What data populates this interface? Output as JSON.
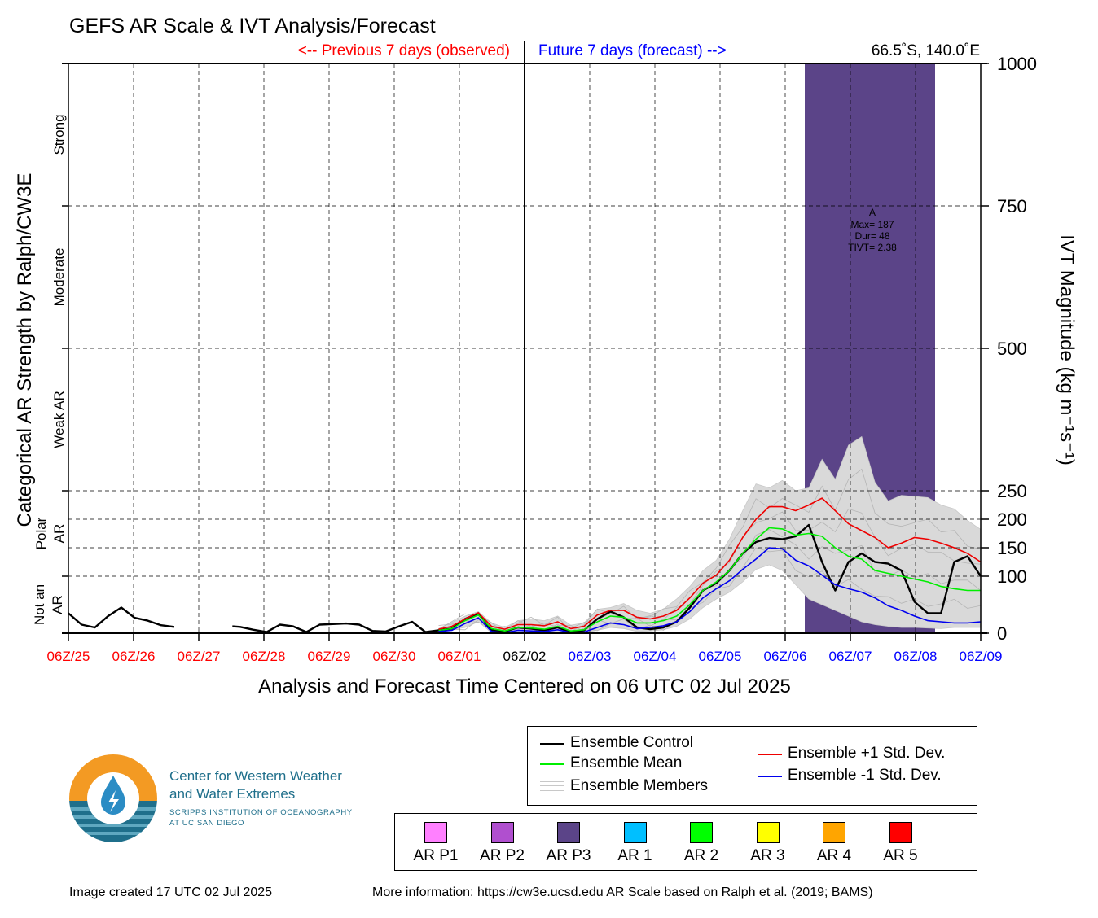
{
  "chart_data": {
    "type": "line",
    "title": "GEFS AR Scale & IVT Analysis/Forecast",
    "prev_label": "<-- Previous 7 days (observed)",
    "future_label": "Future 7 days (forecast) -->",
    "location": "66.5˚S, 140.0˚E",
    "xlabel": "Analysis and Forecast Time Centered on 06 UTC 02 Jul 2025",
    "ylabel_left": "Categorical AR Strength by Ralph/CW3E",
    "ylabel_right": "IVT Magnitude (kg m⁻¹s⁻¹)",
    "x_ticks": [
      "06Z/25",
      "06Z/26",
      "06Z/27",
      "06Z/28",
      "06Z/29",
      "06Z/30",
      "06Z/01",
      "06Z/02",
      "06Z/03",
      "06Z/04",
      "06Z/05",
      "06Z/06",
      "06Z/07",
      "06Z/08",
      "06Z/09"
    ],
    "x_tick_colors": [
      "#ff0000",
      "#ff0000",
      "#ff0000",
      "#ff0000",
      "#ff0000",
      "#ff0000",
      "#ff0000",
      "#000000",
      "#0000ff",
      "#0000ff",
      "#0000ff",
      "#0000ff",
      "#0000ff",
      "#0000ff",
      "#0000ff"
    ],
    "x_range_days": [
      0,
      14
    ],
    "y_ticks": [
      0,
      100,
      150,
      200,
      250,
      500,
      750,
      1000
    ],
    "ylim": [
      0,
      1000
    ],
    "categories": [
      {
        "label": "Strong",
        "from": 750,
        "to": 1000
      },
      {
        "label": "Moderate",
        "from": 500,
        "to": 750
      },
      {
        "label": "Weak AR",
        "from": 250,
        "to": 500
      },
      {
        "label": "Polar AR",
        "from": 100,
        "to": 250
      },
      {
        "label": "Not an AR",
        "from": 0,
        "to": 100
      }
    ],
    "ar_event": {
      "x_start": 11.3,
      "x_end": 13.3,
      "color": "#5b4488",
      "label": "A",
      "lines": [
        "Max= 187",
        "Dur= 48",
        "TIVT= 2.38"
      ]
    },
    "series": [
      {
        "name": "Ensemble Control",
        "color": "#000000",
        "points": [
          [
            0.0,
            35
          ],
          [
            0.25,
            15
          ],
          [
            0.5,
            10
          ],
          [
            0.75,
            30
          ],
          [
            1.0,
            45
          ],
          [
            1.25,
            27
          ],
          [
            1.5,
            22
          ],
          [
            1.75,
            14
          ],
          [
            2.0,
            11
          ],
          null,
          [
            3.1,
            12
          ],
          [
            3.25,
            11
          ],
          [
            3.5,
            6
          ],
          [
            3.75,
            2
          ],
          [
            4.0,
            15
          ],
          [
            4.25,
            12
          ],
          [
            4.5,
            2
          ],
          [
            4.75,
            15
          ],
          [
            5.0,
            16
          ],
          [
            5.25,
            17
          ],
          [
            5.5,
            15
          ],
          [
            5.75,
            4
          ],
          [
            6.0,
            3
          ],
          [
            6.25,
            12
          ],
          [
            6.5,
            20
          ],
          [
            6.75,
            2
          ],
          [
            7.0,
            5
          ],
          [
            7.25,
            8
          ],
          [
            7.5,
            25
          ],
          [
            7.75,
            35
          ],
          [
            8.0,
            5
          ],
          [
            8.25,
            3
          ],
          [
            8.5,
            10
          ],
          [
            8.75,
            8
          ],
          [
            9.0,
            5
          ],
          [
            9.25,
            10
          ],
          [
            9.5,
            2
          ],
          [
            9.75,
            5
          ],
          [
            10.0,
            25
          ],
          [
            10.25,
            38
          ],
          [
            10.5,
            28
          ],
          [
            10.75,
            10
          ],
          [
            11.0,
            7
          ],
          [
            11.25,
            10
          ],
          [
            11.5,
            20
          ],
          [
            11.75,
            45
          ],
          [
            12.0,
            75
          ],
          [
            12.25,
            88
          ],
          [
            12.5,
            110
          ],
          [
            12.75,
            140
          ],
          [
            13.0,
            160
          ],
          [
            13.25,
            167
          ],
          [
            13.5,
            165
          ],
          [
            13.75,
            170
          ],
          [
            14.0,
            190
          ],
          [
            14.25,
            125
          ],
          [
            14.5,
            75
          ],
          [
            14.75,
            125
          ],
          [
            15.0,
            140
          ],
          [
            15.25,
            125
          ],
          [
            15.5,
            122
          ],
          [
            15.75,
            110
          ],
          [
            16.0,
            55
          ],
          [
            16.25,
            35
          ],
          [
            16.5,
            35
          ],
          [
            16.75,
            125
          ],
          [
            17.0,
            135
          ],
          [
            17.25,
            100
          ]
        ]
      },
      {
        "name": "Ensemble Mean",
        "color": "#00ee00",
        "points": [
          [
            7.0,
            5
          ],
          [
            7.25,
            8
          ],
          [
            7.5,
            22
          ],
          [
            7.75,
            32
          ],
          [
            8.0,
            8
          ],
          [
            8.25,
            4
          ],
          [
            8.5,
            10
          ],
          [
            8.75,
            9
          ],
          [
            9.0,
            7
          ],
          [
            9.25,
            12
          ],
          [
            9.5,
            4
          ],
          [
            9.75,
            6
          ],
          [
            10.0,
            20
          ],
          [
            10.25,
            30
          ],
          [
            10.5,
            28
          ],
          [
            10.75,
            18
          ],
          [
            11.0,
            18
          ],
          [
            11.25,
            22
          ],
          [
            11.5,
            30
          ],
          [
            11.75,
            50
          ],
          [
            12.0,
            75
          ],
          [
            12.25,
            90
          ],
          [
            12.5,
            110
          ],
          [
            12.75,
            140
          ],
          [
            13.0,
            165
          ],
          [
            13.25,
            185
          ],
          [
            13.5,
            183
          ],
          [
            13.75,
            172
          ],
          [
            14.0,
            175
          ],
          [
            14.25,
            170
          ],
          [
            14.5,
            150
          ],
          [
            14.75,
            135
          ],
          [
            15.0,
            130
          ],
          [
            15.25,
            110
          ],
          [
            15.5,
            105
          ],
          [
            15.75,
            100
          ],
          [
            16.0,
            95
          ],
          [
            16.25,
            90
          ],
          [
            16.5,
            82
          ],
          [
            16.75,
            78
          ],
          [
            17.0,
            75
          ],
          [
            17.25,
            75
          ]
        ]
      },
      {
        "name": "Ensemble +1 Std. Dev.",
        "color": "#ee0000",
        "points": [
          [
            7.0,
            7
          ],
          [
            7.25,
            12
          ],
          [
            7.5,
            25
          ],
          [
            7.75,
            36
          ],
          [
            8.0,
            12
          ],
          [
            8.25,
            7
          ],
          [
            8.5,
            15
          ],
          [
            8.75,
            15
          ],
          [
            9.0,
            13
          ],
          [
            9.25,
            20
          ],
          [
            9.5,
            8
          ],
          [
            9.75,
            12
          ],
          [
            10.0,
            32
          ],
          [
            10.25,
            40
          ],
          [
            10.5,
            40
          ],
          [
            10.75,
            28
          ],
          [
            11.0,
            25
          ],
          [
            11.25,
            30
          ],
          [
            11.5,
            40
          ],
          [
            11.75,
            62
          ],
          [
            12.0,
            88
          ],
          [
            12.25,
            102
          ],
          [
            12.5,
            128
          ],
          [
            12.75,
            168
          ],
          [
            13.0,
            200
          ],
          [
            13.25,
            222
          ],
          [
            13.5,
            222
          ],
          [
            13.75,
            215
          ],
          [
            14.0,
            225
          ],
          [
            14.25,
            237
          ],
          [
            14.5,
            215
          ],
          [
            14.75,
            192
          ],
          [
            15.0,
            180
          ],
          [
            15.25,
            168
          ],
          [
            15.5,
            150
          ],
          [
            15.75,
            158
          ],
          [
            16.0,
            168
          ],
          [
            16.25,
            165
          ],
          [
            16.5,
            158
          ],
          [
            16.75,
            150
          ],
          [
            17.0,
            140
          ],
          [
            17.25,
            125
          ]
        ]
      },
      {
        "name": "Ensemble -1 Std. Dev.",
        "color": "#0000ee",
        "points": [
          [
            7.0,
            3
          ],
          [
            7.25,
            5
          ],
          [
            7.5,
            17
          ],
          [
            7.75,
            27
          ],
          [
            8.0,
            3
          ],
          [
            8.25,
            1
          ],
          [
            8.5,
            5
          ],
          [
            8.75,
            4
          ],
          [
            9.0,
            3
          ],
          [
            9.25,
            6
          ],
          [
            9.5,
            1
          ],
          [
            9.75,
            2
          ],
          [
            10.0,
            10
          ],
          [
            10.25,
            18
          ],
          [
            10.5,
            15
          ],
          [
            10.75,
            8
          ],
          [
            11.0,
            10
          ],
          [
            11.25,
            13
          ],
          [
            11.5,
            20
          ],
          [
            11.75,
            38
          ],
          [
            12.0,
            62
          ],
          [
            12.25,
            78
          ],
          [
            12.5,
            92
          ],
          [
            12.75,
            112
          ],
          [
            13.0,
            130
          ],
          [
            13.25,
            150
          ],
          [
            13.5,
            148
          ],
          [
            13.75,
            128
          ],
          [
            14.0,
            118
          ],
          [
            14.25,
            102
          ],
          [
            14.5,
            85
          ],
          [
            14.75,
            78
          ],
          [
            15.0,
            72
          ],
          [
            15.25,
            62
          ],
          [
            15.5,
            48
          ],
          [
            15.75,
            40
          ],
          [
            16.0,
            30
          ],
          [
            16.25,
            22
          ],
          [
            16.5,
            20
          ],
          [
            16.75,
            18
          ],
          [
            17.0,
            18
          ],
          [
            17.25,
            20
          ]
        ]
      }
    ],
    "ensemble_envelope": {
      "name": "Ensemble Members",
      "color": "#c8c8c8",
      "upper": [
        [
          7.0,
          8
        ],
        [
          7.5,
          30
        ],
        [
          7.75,
          38
        ],
        [
          8.0,
          18
        ],
        [
          8.25,
          10
        ],
        [
          8.5,
          22
        ],
        [
          8.75,
          25
        ],
        [
          9.0,
          22
        ],
        [
          9.25,
          30
        ],
        [
          9.5,
          14
        ],
        [
          9.75,
          18
        ],
        [
          10.0,
          42
        ],
        [
          10.25,
          45
        ],
        [
          10.5,
          52
        ],
        [
          10.75,
          40
        ],
        [
          11.0,
          35
        ],
        [
          11.25,
          42
        ],
        [
          11.5,
          60
        ],
        [
          11.75,
          82
        ],
        [
          12.0,
          110
        ],
        [
          12.25,
          128
        ],
        [
          12.5,
          165
        ],
        [
          12.75,
          215
        ],
        [
          13.0,
          262
        ],
        [
          13.25,
          255
        ],
        [
          13.5,
          268
        ],
        [
          13.75,
          250
        ],
        [
          14.0,
          255
        ],
        [
          14.25,
          305
        ],
        [
          14.5,
          270
        ],
        [
          14.75,
          330
        ],
        [
          15.0,
          345
        ],
        [
          15.25,
          265
        ],
        [
          15.5,
          232
        ],
        [
          15.75,
          242
        ],
        [
          16.0,
          240
        ],
        [
          16.25,
          238
        ],
        [
          16.5,
          225
        ],
        [
          16.75,
          218
        ],
        [
          17.0,
          198
        ],
        [
          17.25,
          182
        ]
      ],
      "lower": [
        [
          7.0,
          2
        ],
        [
          7.5,
          10
        ],
        [
          7.75,
          20
        ],
        [
          8.0,
          1
        ],
        [
          8.25,
          0
        ],
        [
          8.5,
          2
        ],
        [
          8.75,
          1
        ],
        [
          9.0,
          1
        ],
        [
          9.25,
          2
        ],
        [
          9.5,
          0
        ],
        [
          9.75,
          1
        ],
        [
          10.0,
          5
        ],
        [
          10.25,
          10
        ],
        [
          10.5,
          8
        ],
        [
          10.75,
          3
        ],
        [
          11.0,
          4
        ],
        [
          11.25,
          6
        ],
        [
          11.5,
          12
        ],
        [
          11.75,
          25
        ],
        [
          12.0,
          45
        ],
        [
          12.25,
          60
        ],
        [
          12.5,
          72
        ],
        [
          12.75,
          90
        ],
        [
          13.0,
          112
        ],
        [
          13.25,
          120
        ],
        [
          13.5,
          110
        ],
        [
          13.75,
          85
        ],
        [
          14.0,
          60
        ],
        [
          14.25,
          50
        ],
        [
          14.5,
          40
        ],
        [
          14.75,
          30
        ],
        [
          15.0,
          20
        ],
        [
          15.25,
          15
        ],
        [
          15.5,
          12
        ],
        [
          15.75,
          10
        ],
        [
          16.0,
          10
        ],
        [
          16.25,
          9
        ],
        [
          16.5,
          8
        ],
        [
          16.75,
          10
        ],
        [
          17.0,
          10
        ],
        [
          17.25,
          10
        ]
      ]
    }
  },
  "logo": {
    "line1": "Center for Western Weather",
    "line2": "and Water Extremes",
    "sub1": "SCRIPPS INSTITUTION OF OCEANOGRAPHY",
    "sub2": "AT UC SAN DIEGO"
  },
  "legend": {
    "control": "Ensemble Control",
    "mean": "Ensemble Mean",
    "members": "Ensemble Members",
    "plus": "Ensemble +1 Std. Dev.",
    "minus": "Ensemble -1 Std. Dev.",
    "colors": {
      "control": "#000000",
      "mean": "#00ee00",
      "members": "#c8c8c8",
      "plus": "#ee0000",
      "minus": "#0000ee"
    }
  },
  "ar_scale": [
    {
      "label": "AR P1",
      "color": "#ff80ff"
    },
    {
      "label": "AR P2",
      "color": "#b04fcf"
    },
    {
      "label": "AR P3",
      "color": "#5b4488"
    },
    {
      "label": "AR 1",
      "color": "#00bfff"
    },
    {
      "label": "AR 2",
      "color": "#00ff00"
    },
    {
      "label": "AR 3",
      "color": "#ffff00"
    },
    {
      "label": "AR 4",
      "color": "#ffa500"
    },
    {
      "label": "AR 5",
      "color": "#ff0000"
    }
  ],
  "footer": {
    "left": "Image created 17 UTC 02 Jul 2025",
    "right": "More information: https://cw3e.ucsd.edu AR Scale based on Ralph et al. (2019; BAMS)"
  }
}
